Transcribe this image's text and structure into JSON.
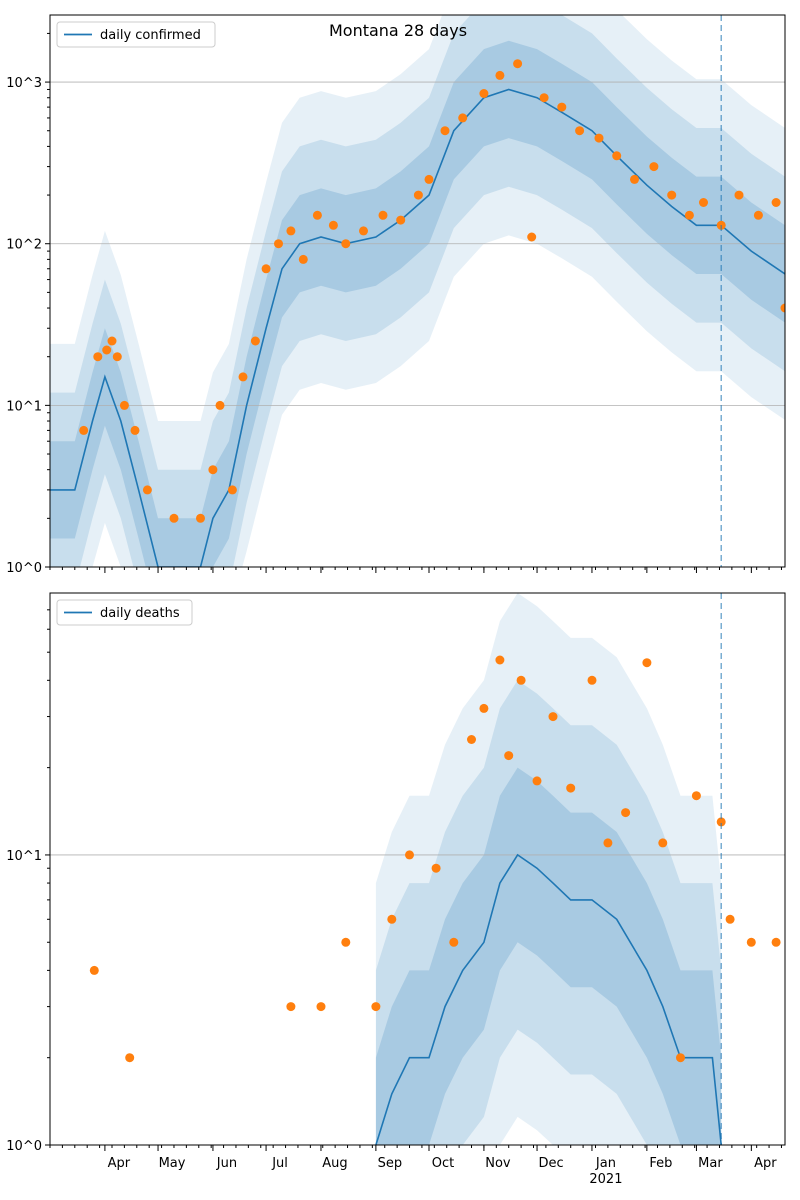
{
  "chart_data": [
    {
      "type": "line",
      "title": "Montana 28 days",
      "yscale": "log",
      "ylim": [
        1,
        2600
      ],
      "y_ticks": [
        1,
        10,
        100,
        1000
      ],
      "y_tick_labels": [
        "10^0",
        "10^1",
        "10^2",
        "10^3"
      ],
      "grid": "horizontal major",
      "legend_position": "upper-left",
      "x_range": [
        "2020-03-01",
        "2021-04-20"
      ],
      "forecast_start": "2021-03-15",
      "series": [
        {
          "name": "daily confirmed",
          "kind": "line",
          "color": "#1f77b4",
          "x": [
            "2020-03-01",
            "2020-03-15",
            "2020-03-25",
            "2020-04-01",
            "2020-04-10",
            "2020-04-20",
            "2020-05-01",
            "2020-05-15",
            "2020-05-25",
            "2020-06-01",
            "2020-06-10",
            "2020-06-20",
            "2020-07-01",
            "2020-07-10",
            "2020-07-20",
            "2020-08-01",
            "2020-08-15",
            "2020-09-01",
            "2020-09-15",
            "2020-10-01",
            "2020-10-15",
            "2020-11-01",
            "2020-11-15",
            "2020-12-01",
            "2020-12-15",
            "2021-01-01",
            "2021-01-15",
            "2021-02-01",
            "2021-02-15",
            "2021-03-01",
            "2021-03-15",
            "2021-04-01",
            "2021-04-20"
          ],
          "y": [
            3,
            3,
            8,
            15,
            8,
            3,
            1,
            1,
            1,
            2,
            3,
            10,
            30,
            70,
            100,
            110,
            100,
            110,
            140,
            200,
            500,
            800,
            900,
            800,
            650,
            500,
            350,
            230,
            170,
            130,
            130,
            90,
            65
          ]
        },
        {
          "name": "",
          "kind": "scatter",
          "color": "#ff7f0e",
          "x": [
            "2020-03-20",
            "2020-03-28",
            "2020-04-02",
            "2020-04-05",
            "2020-04-08",
            "2020-04-12",
            "2020-04-18",
            "2020-04-25",
            "2020-05-10",
            "2020-05-25",
            "2020-06-01",
            "2020-06-05",
            "2020-06-12",
            "2020-06-18",
            "2020-06-25",
            "2020-07-01",
            "2020-07-08",
            "2020-07-15",
            "2020-07-22",
            "2020-07-30",
            "2020-08-08",
            "2020-08-15",
            "2020-08-25",
            "2020-09-05",
            "2020-09-15",
            "2020-09-25",
            "2020-10-01",
            "2020-10-10",
            "2020-10-20",
            "2020-11-01",
            "2020-11-10",
            "2020-11-20",
            "2020-11-28",
            "2020-12-05",
            "2020-12-15",
            "2020-12-25",
            "2021-01-05",
            "2021-01-15",
            "2021-01-25",
            "2021-02-05",
            "2021-02-15",
            "2021-02-25",
            "2021-03-05",
            "2021-03-15",
            "2021-03-25",
            "2021-04-05",
            "2021-04-15",
            "2021-04-20"
          ],
          "y": [
            7,
            20,
            22,
            25,
            20,
            10,
            7,
            3,
            2,
            2,
            4,
            10,
            3,
            15,
            25,
            70,
            100,
            120,
            80,
            150,
            130,
            100,
            120,
            150,
            140,
            200,
            250,
            500,
            600,
            850,
            1100,
            1300,
            110,
            800,
            700,
            500,
            450,
            350,
            250,
            300,
            200,
            150,
            180,
            130,
            200,
            150,
            180,
            40
          ]
        }
      ]
    },
    {
      "type": "line",
      "title": "",
      "yscale": "log",
      "ylim": [
        1,
        80
      ],
      "y_ticks": [
        1,
        10
      ],
      "y_tick_labels": [
        "10^0",
        "10^1"
      ],
      "grid": "horizontal major",
      "legend_position": "upper-left",
      "x_range": [
        "2020-03-01",
        "2021-04-20"
      ],
      "x_tick_labels": [
        "Apr",
        "May",
        "Jun",
        "Jul",
        "Aug",
        "Sep",
        "Oct",
        "Nov",
        "Dec",
        "Jan",
        "Feb",
        "Mar",
        "Apr"
      ],
      "x_tick_dates": [
        "2020-04-01",
        "2020-05-01",
        "2020-06-01",
        "2020-07-01",
        "2020-08-01",
        "2020-09-01",
        "2020-10-01",
        "2020-11-01",
        "2020-12-01",
        "2021-01-01",
        "2021-02-01",
        "2021-03-01",
        "2021-04-01"
      ],
      "x_year_label": "2021",
      "forecast_start": "2021-03-15",
      "series": [
        {
          "name": "daily deaths",
          "kind": "line",
          "color": "#1f77b4",
          "x": [
            "2020-09-01",
            "2020-09-10",
            "2020-09-20",
            "2020-10-01",
            "2020-10-10",
            "2020-10-20",
            "2020-11-01",
            "2020-11-10",
            "2020-11-20",
            "2020-12-01",
            "2020-12-10",
            "2020-12-20",
            "2021-01-01",
            "2021-01-15",
            "2021-02-01",
            "2021-02-10",
            "2021-02-20",
            "2021-03-01",
            "2021-03-10",
            "2021-03-15"
          ],
          "y": [
            1,
            1.5,
            2,
            2,
            3,
            4,
            5,
            8,
            10,
            9,
            8,
            7,
            7,
            6,
            4,
            3,
            2,
            2,
            2,
            1
          ]
        },
        {
          "name": "",
          "kind": "scatter",
          "color": "#ff7f0e",
          "x": [
            "2020-03-26",
            "2020-04-15",
            "2020-07-15",
            "2020-08-01",
            "2020-08-15",
            "2020-09-01",
            "2020-09-10",
            "2020-09-20",
            "2020-10-05",
            "2020-10-15",
            "2020-10-25",
            "2020-11-01",
            "2020-11-10",
            "2020-11-15",
            "2020-11-22",
            "2020-12-01",
            "2020-12-10",
            "2020-12-20",
            "2021-01-01",
            "2021-01-10",
            "2021-01-20",
            "2021-02-01",
            "2021-02-10",
            "2021-02-20",
            "2021-03-01",
            "2021-03-15",
            "2021-03-20",
            "2021-04-01",
            "2021-04-15"
          ],
          "y": [
            4,
            2,
            3,
            3,
            5,
            3,
            6,
            10,
            9,
            5,
            25,
            32,
            47,
            22,
            40,
            18,
            30,
            17,
            40,
            11,
            14,
            46,
            11,
            2,
            16,
            13,
            6,
            5,
            5
          ]
        }
      ]
    }
  ]
}
